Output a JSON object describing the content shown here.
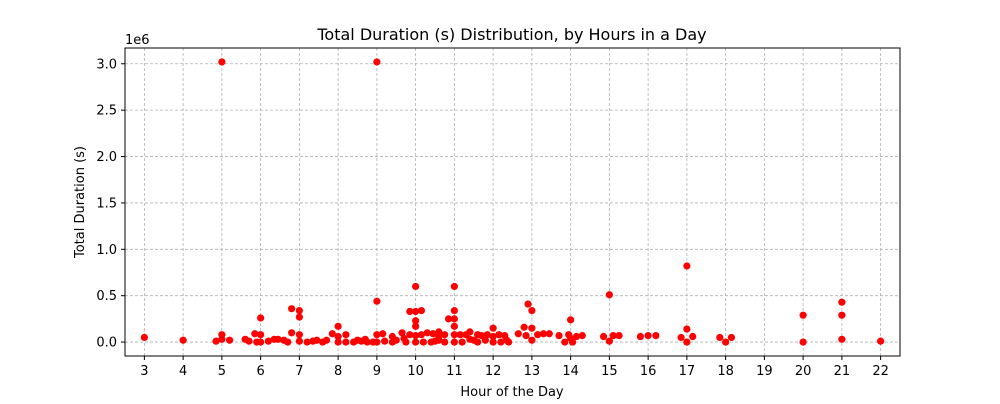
{
  "chart_data": {
    "type": "scatter",
    "title": "Total Duration (s) Distribution, by Hours in a Day",
    "xlabel": "Hour of the Day",
    "ylabel": "Total Duration (s)",
    "y_offset_label": "1e6",
    "xlim": [
      2.5,
      22.5
    ],
    "ylim": [
      -0.15,
      3.17
    ],
    "x_ticks": [
      3,
      4,
      5,
      6,
      7,
      8,
      9,
      10,
      11,
      12,
      13,
      14,
      15,
      16,
      17,
      18,
      19,
      20,
      21,
      22
    ],
    "x_tick_labels": [
      "3",
      "4",
      "5",
      "6",
      "7",
      "8",
      "9",
      "10",
      "11",
      "12",
      "13",
      "14",
      "15",
      "16",
      "17",
      "18",
      "19",
      "20",
      "21",
      "22"
    ],
    "y_ticks": [
      0.0,
      0.5,
      1.0,
      1.5,
      2.0,
      2.5,
      3.0
    ],
    "y_tick_labels": [
      "0.0",
      "0.5",
      "1.0",
      "1.5",
      "2.0",
      "2.5",
      "3.0"
    ],
    "grid": true,
    "marker_color": "#ff0000",
    "points": [
      [
        3.0,
        0.05
      ],
      [
        4.0,
        0.02
      ],
      [
        4.85,
        0.01
      ],
      [
        5.0,
        3.02
      ],
      [
        5.0,
        0.08
      ],
      [
        5.0,
        0.03
      ],
      [
        5.2,
        0.02
      ],
      [
        5.6,
        0.03
      ],
      [
        5.7,
        0.01
      ],
      [
        5.85,
        0.09
      ],
      [
        5.9,
        0.0
      ],
      [
        6.0,
        0.26
      ],
      [
        6.0,
        0.08
      ],
      [
        6.0,
        0.0
      ],
      [
        6.2,
        0.01
      ],
      [
        6.35,
        0.03
      ],
      [
        6.45,
        0.03
      ],
      [
        6.6,
        0.02
      ],
      [
        6.7,
        0.0
      ],
      [
        6.8,
        0.36
      ],
      [
        6.8,
        0.1
      ],
      [
        7.0,
        0.34
      ],
      [
        7.0,
        0.27
      ],
      [
        7.0,
        0.08
      ],
      [
        7.0,
        0.01
      ],
      [
        7.2,
        0.0
      ],
      [
        7.35,
        0.01
      ],
      [
        7.45,
        0.02
      ],
      [
        7.6,
        0.0
      ],
      [
        7.7,
        0.02
      ],
      [
        7.85,
        0.09
      ],
      [
        8.0,
        0.17
      ],
      [
        8.0,
        0.06
      ],
      [
        8.0,
        0.0
      ],
      [
        8.2,
        0.08
      ],
      [
        8.2,
        0.0
      ],
      [
        8.4,
        0.0
      ],
      [
        8.5,
        0.02
      ],
      [
        8.6,
        0.01
      ],
      [
        8.7,
        0.03
      ],
      [
        8.75,
        0.0
      ],
      [
        8.9,
        0.0
      ],
      [
        9.0,
        3.02
      ],
      [
        9.0,
        0.44
      ],
      [
        9.0,
        0.08
      ],
      [
        9.0,
        0.0
      ],
      [
        9.15,
        0.09
      ],
      [
        9.2,
        0.01
      ],
      [
        9.4,
        0.06
      ],
      [
        9.4,
        0.0
      ],
      [
        9.5,
        0.02
      ],
      [
        9.65,
        0.1
      ],
      [
        9.7,
        0.04
      ],
      [
        9.75,
        0.0
      ],
      [
        9.85,
        0.08
      ],
      [
        9.85,
        0.33
      ],
      [
        10.0,
        0.6
      ],
      [
        10.0,
        0.33
      ],
      [
        10.0,
        0.23
      ],
      [
        10.0,
        0.17
      ],
      [
        10.0,
        0.07
      ],
      [
        10.0,
        0.0
      ],
      [
        10.15,
        0.34
      ],
      [
        10.15,
        0.08
      ],
      [
        10.2,
        0.0
      ],
      [
        10.3,
        0.1
      ],
      [
        10.4,
        0.0
      ],
      [
        10.45,
        0.09
      ],
      [
        10.5,
        0.01
      ],
      [
        10.6,
        0.11
      ],
      [
        10.6,
        0.06
      ],
      [
        10.6,
        0.02
      ],
      [
        10.75,
        0.0
      ],
      [
        10.75,
        0.08
      ],
      [
        10.85,
        0.25
      ],
      [
        11.0,
        0.6
      ],
      [
        11.0,
        0.34
      ],
      [
        11.0,
        0.25
      ],
      [
        11.0,
        0.17
      ],
      [
        11.0,
        0.08
      ],
      [
        11.0,
        0.0
      ],
      [
        11.15,
        0.08
      ],
      [
        11.2,
        0.0
      ],
      [
        11.3,
        0.08
      ],
      [
        11.4,
        0.11
      ],
      [
        11.4,
        0.03
      ],
      [
        11.5,
        0.02
      ],
      [
        11.6,
        0.08
      ],
      [
        11.6,
        0.0
      ],
      [
        11.7,
        0.07
      ],
      [
        11.8,
        0.02
      ],
      [
        11.85,
        0.08
      ],
      [
        12.0,
        0.15
      ],
      [
        12.0,
        0.06
      ],
      [
        12.0,
        0.0
      ],
      [
        12.15,
        0.08
      ],
      [
        12.2,
        0.0
      ],
      [
        12.3,
        0.07
      ],
      [
        12.35,
        0.02
      ],
      [
        12.4,
        0.0
      ],
      [
        12.65,
        0.09
      ],
      [
        12.8,
        0.16
      ],
      [
        12.85,
        0.07
      ],
      [
        12.9,
        0.41
      ],
      [
        13.0,
        0.34
      ],
      [
        13.0,
        0.15
      ],
      [
        13.0,
        0.02
      ],
      [
        13.15,
        0.08
      ],
      [
        13.3,
        0.09
      ],
      [
        13.45,
        0.09
      ],
      [
        13.7,
        0.07
      ],
      [
        13.85,
        0.0
      ],
      [
        13.95,
        0.08
      ],
      [
        14.0,
        0.24
      ],
      [
        14.0,
        0.04
      ],
      [
        14.05,
        0.0
      ],
      [
        14.15,
        0.06
      ],
      [
        14.3,
        0.07
      ],
      [
        14.85,
        0.06
      ],
      [
        15.0,
        0.51
      ],
      [
        15.0,
        0.01
      ],
      [
        15.1,
        0.07
      ],
      [
        15.25,
        0.07
      ],
      [
        15.8,
        0.06
      ],
      [
        16.0,
        0.07
      ],
      [
        16.2,
        0.07
      ],
      [
        16.85,
        0.05
      ],
      [
        17.0,
        0.82
      ],
      [
        17.0,
        0.14
      ],
      [
        17.0,
        0.0
      ],
      [
        17.15,
        0.06
      ],
      [
        17.85,
        0.05
      ],
      [
        18.0,
        0.0
      ],
      [
        18.15,
        0.05
      ],
      [
        20.0,
        0.29
      ],
      [
        20.0,
        0.0
      ],
      [
        21.0,
        0.43
      ],
      [
        21.0,
        0.29
      ],
      [
        21.0,
        0.03
      ],
      [
        22.0,
        0.01
      ]
    ]
  }
}
